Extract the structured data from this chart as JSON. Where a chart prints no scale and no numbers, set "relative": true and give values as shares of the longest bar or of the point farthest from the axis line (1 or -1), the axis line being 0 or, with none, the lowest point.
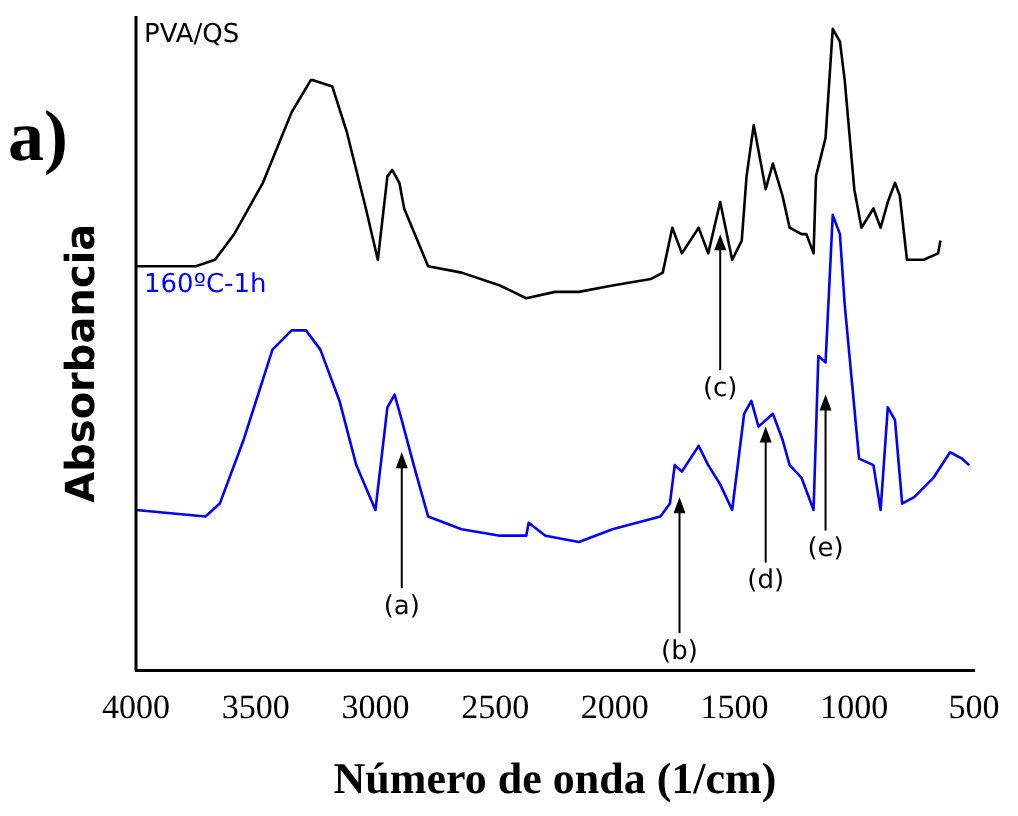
{
  "chart_data": {
    "type": "line",
    "relative": true,
    "xlabel": "Número de onda (1/cm)",
    "ylabel": "Absorbancia",
    "xlim": [
      4000,
      500
    ],
    "xticks": [
      4000,
      3500,
      3000,
      2500,
      2000,
      1500,
      1000,
      500
    ],
    "grid": false,
    "legend": false,
    "marker": "none",
    "line_style": "solid",
    "annotations": [
      "a)",
      {
        "text": "(a)",
        "x": 2890,
        "y": 0.34
      },
      {
        "text": "(b)",
        "x": 1730,
        "y": 0.27
      },
      {
        "text": "(c)",
        "x": 1560,
        "y": 0.68
      },
      {
        "text": "(d)",
        "x": 1370,
        "y": 0.38
      },
      {
        "text": "(e)",
        "x": 1120,
        "y": 0.43
      }
    ],
    "series": [
      {
        "name": "PVA/QS",
        "color": "#000000",
        "x": [
          4000,
          3750,
          3670,
          3590,
          3470,
          3350,
          3270,
          3260,
          3180,
          3120,
          3040,
          2990,
          2950,
          2930,
          2900,
          2880,
          2780,
          2640,
          2480,
          2370,
          2250,
          2150,
          2010,
          1850,
          1800,
          1760,
          1720,
          1650,
          1610,
          1560,
          1510,
          1470,
          1450,
          1420,
          1390,
          1370,
          1340,
          1300,
          1270,
          1220,
          1200,
          1170,
          1160,
          1120,
          1090,
          1060,
          1040,
          1000,
          970,
          920,
          890,
          860,
          830,
          810,
          780,
          710,
          650,
          640
        ],
        "values": [
          0.63,
          0.63,
          0.64,
          0.68,
          0.76,
          0.87,
          0.92,
          0.92,
          0.91,
          0.84,
          0.72,
          0.64,
          0.77,
          0.78,
          0.76,
          0.72,
          0.63,
          0.62,
          0.6,
          0.58,
          0.59,
          0.59,
          0.6,
          0.61,
          0.62,
          0.69,
          0.65,
          0.69,
          0.65,
          0.73,
          0.64,
          0.67,
          0.77,
          0.85,
          0.79,
          0.75,
          0.79,
          0.74,
          0.69,
          0.68,
          0.68,
          0.65,
          0.77,
          0.83,
          1,
          0.98,
          0.92,
          0.75,
          0.69,
          0.72,
          0.69,
          0.73,
          0.76,
          0.74,
          0.64,
          0.64,
          0.65,
          0.67
        ]
      },
      {
        "name": "160ºC-1h",
        "color": "#0000ff",
        "x": [
          4000,
          3710,
          3650,
          3550,
          3430,
          3350,
          3290,
          3230,
          3150,
          3080,
          3000,
          2950,
          2920,
          2890,
          2840,
          2780,
          2640,
          2480,
          2370,
          2360,
          2290,
          2150,
          2010,
          1810,
          1770,
          1750,
          1720,
          1650,
          1610,
          1560,
          1510,
          1460,
          1430,
          1400,
          1340,
          1300,
          1270,
          1220,
          1170,
          1150,
          1120,
          1090,
          1060,
          1040,
          1010,
          980,
          920,
          890,
          860,
          830,
          800,
          750,
          670,
          600,
          550,
          520
        ],
        "values": [
          0.25,
          0.24,
          0.26,
          0.36,
          0.5,
          0.53,
          0.53,
          0.5,
          0.42,
          0.32,
          0.25,
          0.41,
          0.43,
          0.39,
          0.32,
          0.24,
          0.22,
          0.21,
          0.21,
          0.23,
          0.21,
          0.2,
          0.22,
          0.24,
          0.26,
          0.32,
          0.31,
          0.35,
          0.32,
          0.29,
          0.25,
          0.4,
          0.42,
          0.38,
          0.4,
          0.36,
          0.32,
          0.3,
          0.25,
          0.49,
          0.48,
          0.71,
          0.68,
          0.57,
          0.45,
          0.33,
          0.32,
          0.25,
          0.41,
          0.39,
          0.26,
          0.27,
          0.3,
          0.34,
          0.33,
          0.32
        ]
      }
    ]
  }
}
